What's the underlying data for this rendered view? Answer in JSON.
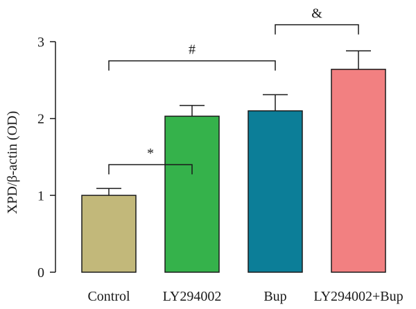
{
  "chart_data": {
    "type": "bar",
    "title": "",
    "xlabel": "",
    "ylabel": "XPD/β-actin (OD)",
    "ylim": [
      0,
      3
    ],
    "yticks": [
      0,
      1,
      2,
      3
    ],
    "categories": [
      "Control",
      "LY294002",
      "Bup",
      "LY294002+Bup"
    ],
    "values": [
      1.0,
      2.03,
      2.1,
      2.64
    ],
    "errors": [
      0.09,
      0.14,
      0.21,
      0.24
    ],
    "colors": [
      "#c2b87a",
      "#35b24b",
      "#0c7e98",
      "#f28081"
    ],
    "significance": [
      {
        "from": 0,
        "to": 1,
        "label": "*",
        "level": 1.4
      },
      {
        "from": 0,
        "to": 2,
        "label": "#",
        "level": 2.75
      },
      {
        "from": 2,
        "to": 3,
        "label": "&",
        "level": 3.22
      }
    ],
    "grid": false
  }
}
